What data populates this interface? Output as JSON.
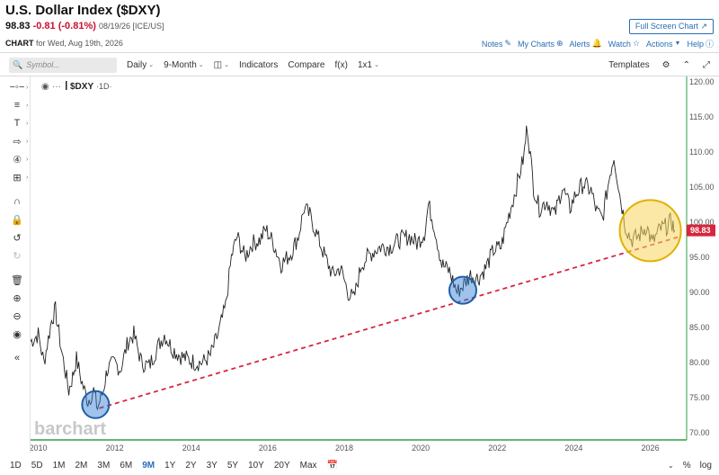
{
  "header": {
    "title": "U.S. Dollar Index ($DXY)",
    "last": "98.83",
    "change": "-0.81 (-0.81%)",
    "meta": "08/19/26 [ICE/US]",
    "full_screen": "Full Screen Chart",
    "chart_label": "CHART",
    "chart_for": "for Wed, Aug 19th, 2026"
  },
  "links": {
    "notes": "Notes",
    "my_charts": "My Charts",
    "alerts": "Alerts",
    "watch": "Watch",
    "actions": "Actions",
    "help": "Help"
  },
  "toolbar": {
    "search_placeholder": "Symbol...",
    "interval": "Daily",
    "range": "9-Month",
    "indicators": "Indicators",
    "compare": "Compare",
    "fx": "f(x)",
    "layout": "1x1",
    "templates": "Templates"
  },
  "chart": {
    "symbol_label": "$DXY",
    "interval_label": "·1D·",
    "last_price_tag": "98.83",
    "watermark": "barchart",
    "colors": {
      "price": "#222222",
      "trendline": "#d7263d",
      "blue_circle": "#2b7bd0",
      "yellow_circle": "#f2c200",
      "last_tag": "#d7263d",
      "bottom_axis": "#2e9f44"
    }
  },
  "chart_data": {
    "type": "line",
    "series": [
      {
        "values": [
          [
            2009.8,
            83
          ],
          [
            2010.0,
            84
          ],
          [
            2010.15,
            80
          ],
          [
            2010.35,
            86
          ],
          [
            2010.45,
            87.5
          ],
          [
            2010.6,
            82
          ],
          [
            2010.8,
            76
          ],
          [
            2010.9,
            78
          ],
          [
            2011.0,
            80.5
          ],
          [
            2011.15,
            77
          ],
          [
            2011.3,
            74.5
          ],
          [
            2011.45,
            76
          ],
          [
            2011.55,
            73.5
          ],
          [
            2011.7,
            76
          ],
          [
            2011.8,
            79
          ],
          [
            2012.0,
            80
          ],
          [
            2012.15,
            79
          ],
          [
            2012.35,
            83
          ],
          [
            2012.5,
            84
          ],
          [
            2012.7,
            80
          ],
          [
            2012.9,
            79.5
          ],
          [
            2013.1,
            82
          ],
          [
            2013.3,
            84
          ],
          [
            2013.5,
            82
          ],
          [
            2013.7,
            81
          ],
          [
            2013.9,
            80.5
          ],
          [
            2014.1,
            80
          ],
          [
            2014.3,
            80
          ],
          [
            2014.5,
            81
          ],
          [
            2014.7,
            84
          ],
          [
            2014.9,
            88
          ],
          [
            2015.05,
            95
          ],
          [
            2015.2,
            98
          ],
          [
            2015.4,
            95
          ],
          [
            2015.6,
            97
          ],
          [
            2015.8,
            97.5
          ],
          [
            2015.95,
            99
          ],
          [
            2016.15,
            97
          ],
          [
            2016.35,
            94
          ],
          [
            2016.6,
            95.5
          ],
          [
            2016.8,
            98
          ],
          [
            2016.95,
            102
          ],
          [
            2017.1,
            101
          ],
          [
            2017.3,
            98
          ],
          [
            2017.5,
            95
          ],
          [
            2017.7,
            92.5
          ],
          [
            2017.9,
            93.5
          ],
          [
            2018.1,
            90
          ],
          [
            2018.25,
            89
          ],
          [
            2018.45,
            94
          ],
          [
            2018.6,
            95
          ],
          [
            2018.8,
            96
          ],
          [
            2018.95,
            96.5
          ],
          [
            2019.2,
            96.5
          ],
          [
            2019.45,
            97.5
          ],
          [
            2019.7,
            98
          ],
          [
            2019.9,
            97
          ],
          [
            2020.1,
            98.5
          ],
          [
            2020.2,
            102.5
          ],
          [
            2020.35,
            99.5
          ],
          [
            2020.55,
            94
          ],
          [
            2020.75,
            93
          ],
          [
            2020.95,
            90
          ],
          [
            2021.1,
            91
          ],
          [
            2021.3,
            92.5
          ],
          [
            2021.5,
            92
          ],
          [
            2021.7,
            93.5
          ],
          [
            2021.9,
            96
          ],
          [
            2022.1,
            96.5
          ],
          [
            2022.3,
            101
          ],
          [
            2022.5,
            105
          ],
          [
            2022.7,
            109.5
          ],
          [
            2022.78,
            114
          ],
          [
            2022.95,
            105
          ],
          [
            2023.1,
            102
          ],
          [
            2023.3,
            103
          ],
          [
            2023.5,
            101
          ],
          [
            2023.7,
            105
          ],
          [
            2023.9,
            102
          ],
          [
            2024.05,
            104
          ],
          [
            2024.25,
            105.5
          ],
          [
            2024.45,
            104.5
          ],
          [
            2024.6,
            101.5
          ],
          [
            2024.75,
            100.5
          ],
          [
            2024.95,
            107
          ],
          [
            2025.05,
            109.5
          ],
          [
            2025.2,
            104
          ],
          [
            2025.35,
            99.5
          ],
          [
            2025.5,
            97.5
          ],
          [
            2025.7,
            98
          ],
          [
            2025.9,
            99.5
          ],
          [
            2026.05,
            97
          ],
          [
            2026.25,
            99
          ],
          [
            2026.45,
            99.5
          ],
          [
            2026.55,
            100.2
          ],
          [
            2026.64,
            98.83
          ]
        ]
      }
    ],
    "x_ticks": [
      "2010",
      "2012",
      "2014",
      "2016",
      "2018",
      "2020",
      "2022",
      "2024",
      "2026"
    ],
    "y_ticks": [
      "70.00",
      "75.00",
      "80.00",
      "85.00",
      "90.00",
      "95.00",
      "100.00",
      "105.00",
      "110.00",
      "115.00",
      "120.00"
    ],
    "ylim": [
      70,
      120
    ],
    "trendline": [
      [
        2011.6,
        73.5
      ],
      [
        2026.8,
        98
      ]
    ],
    "circles": [
      {
        "color": "blue",
        "x": 2011.5,
        "y": 74
      },
      {
        "color": "yellow",
        "x": 2026.0,
        "y": 98.8
      }
    ],
    "last_value": 98.83
  },
  "bottom": {
    "periods": [
      "1D",
      "5D",
      "1M",
      "2M",
      "3M",
      "6M",
      "9M",
      "1Y",
      "2Y",
      "3Y",
      "5Y",
      "10Y",
      "20Y",
      "Max"
    ],
    "active": "9M",
    "percent": "%",
    "log": "log"
  }
}
